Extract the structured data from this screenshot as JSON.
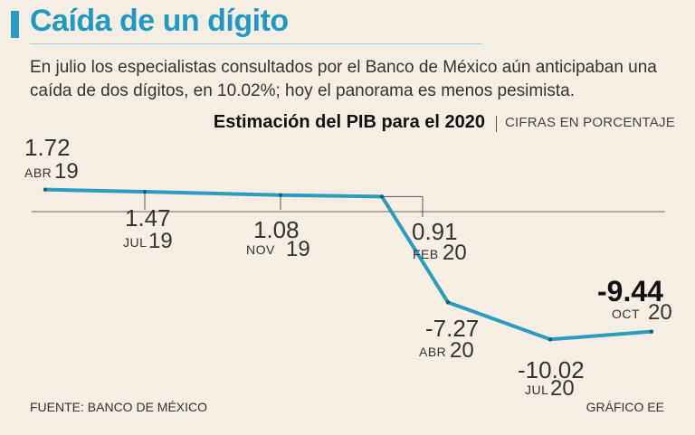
{
  "header": {
    "title": "Caída de un dígito",
    "subtitle": "En julio los especialistas consultados por el Banco de México aún anticipaban una caída de dos dígitos, en 10.02%; hoy el panorama es menos pesimista."
  },
  "chart_header": {
    "title": "Estimación del PIB para el 2020",
    "units": "CIFRAS EN PORCENTAJE"
  },
  "chart_data": {
    "type": "line",
    "title": "Estimación del PIB para el 2020",
    "units": "CIFRAS EN PORCENTAJE",
    "x": [
      "ABR 19",
      "JUL 19",
      "NOV 19",
      "FEB 20",
      "ABR 20",
      "JUL 20",
      "OCT 20"
    ],
    "series": [
      {
        "values": [
          1.72,
          1.47,
          1.08,
          0.91,
          -7.27,
          -10.02,
          -9.44
        ]
      }
    ],
    "labels": [
      {
        "value": "1.72",
        "month": "ABR",
        "year": "19"
      },
      {
        "value": "1.47",
        "month": "JUL",
        "year": "19"
      },
      {
        "value": "1.08",
        "month": "NOV",
        "year": "19"
      },
      {
        "value": "0.91",
        "month": "FEB",
        "year": "20"
      },
      {
        "value": "-7.27",
        "month": "ABR",
        "year": "20"
      },
      {
        "value": "-10.02",
        "month": "JUL",
        "year": "20"
      },
      {
        "value": "-9.44",
        "month": "OCT",
        "year": "20"
      }
    ],
    "colors": {
      "line": "#2a9cc0",
      "baseline": "#666666"
    }
  },
  "footer": {
    "source": "FUENTE: BANCO DE MÉXICO",
    "credit": "GRÁFICO EE"
  }
}
